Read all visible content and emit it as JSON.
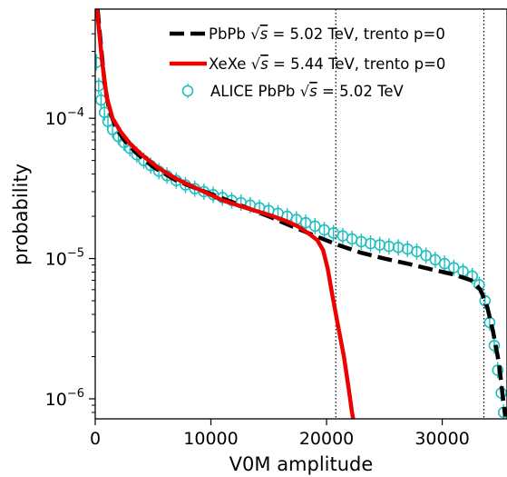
{
  "chart_data": {
    "type": "line",
    "xlabel": "V0M amplitude",
    "ylabel": "probability",
    "yscale": "log",
    "xlim": [
      0,
      35600
    ],
    "ylim": [
      7.2e-07,
      0.0006
    ],
    "x_ticks": [
      0,
      10000,
      20000,
      30000
    ],
    "x_tick_labels": [
      "0",
      "10000",
      "20000",
      "30000"
    ],
    "y_ticks": [
      1e-06,
      1e-05,
      0.0001
    ],
    "y_tick_labels": [
      {
        "base": "10",
        "exp": "−6"
      },
      {
        "base": "10",
        "exp": "−5"
      },
      {
        "base": "10",
        "exp": "−4"
      }
    ],
    "vertical_lines": [
      20800,
      33600
    ],
    "grid": false,
    "legend_position": "top-right",
    "series": [
      {
        "name": "PbPb √s = 5.02 TeV, trento p=0",
        "legend_label": {
          "prefix": "PbPb ",
          "suffix": " = 5.02 TeV, trento p=0"
        },
        "color": "#000000",
        "style": "dashed",
        "points": [
          [
            200,
            0.0006
          ],
          [
            400,
            0.0004
          ],
          [
            800,
            0.00018
          ],
          [
            1200,
            0.000115
          ],
          [
            1800,
            8.5e-05
          ],
          [
            2500,
            7e-05
          ],
          [
            3500,
            5.7e-05
          ],
          [
            5000,
            4.5e-05
          ],
          [
            7000,
            3.6e-05
          ],
          [
            9000,
            3.1e-05
          ],
          [
            12000,
            2.5e-05
          ],
          [
            15000,
            2e-05
          ],
          [
            17000,
            1.7e-05
          ],
          [
            19000,
            1.45e-05
          ],
          [
            21000,
            1.25e-05
          ],
          [
            23000,
            1.1e-05
          ],
          [
            25000,
            1e-05
          ],
          [
            27000,
            9.2e-06
          ],
          [
            29000,
            8.4e-06
          ],
          [
            31000,
            7.7e-06
          ],
          [
            32500,
            7e-06
          ],
          [
            33300,
            6e-06
          ],
          [
            33900,
            4.5e-06
          ],
          [
            34400,
            3e-06
          ],
          [
            34900,
            1.8e-06
          ],
          [
            35200,
            1.1e-06
          ],
          [
            35450,
            7.5e-07
          ]
        ]
      },
      {
        "name": "XeXe √s = 5.44 TeV, trento p=0",
        "legend_label": {
          "prefix": "XeXe ",
          "suffix": " = 5.44 TeV, trento p=0"
        },
        "color": "#ee0000",
        "style": "solid",
        "points": [
          [
            150,
            0.0006
          ],
          [
            300,
            0.00045
          ],
          [
            600,
            0.00025
          ],
          [
            1000,
            0.00014
          ],
          [
            1500,
            0.0001
          ],
          [
            2200,
            8e-05
          ],
          [
            3000,
            6.6e-05
          ],
          [
            4000,
            5.5e-05
          ],
          [
            5500,
            4.4e-05
          ],
          [
            7000,
            3.7e-05
          ],
          [
            9000,
            3.1e-05
          ],
          [
            11000,
            2.6e-05
          ],
          [
            13000,
            2.3e-05
          ],
          [
            15000,
            2.05e-05
          ],
          [
            16500,
            1.85e-05
          ],
          [
            17500,
            1.7e-05
          ],
          [
            18500,
            1.5e-05
          ],
          [
            19200,
            1.35e-05
          ],
          [
            19700,
            1.15e-05
          ],
          [
            20100,
            8.5e-06
          ],
          [
            20500,
            5.5e-06
          ],
          [
            21000,
            3.3e-06
          ],
          [
            21500,
            2e-06
          ],
          [
            21900,
            1.2e-06
          ],
          [
            22200,
            8e-07
          ],
          [
            22350,
            6.8e-07
          ]
        ]
      },
      {
        "name": "ALICE PbPb √s = 5.02 TeV",
        "legend_label": {
          "prefix": "ALICE PbPb ",
          "suffix": " = 5.02 TeV"
        },
        "color": "#1fbfbf",
        "style": "markers",
        "points": [
          [
            100,
            0.00025
          ],
          [
            300,
            0.00017
          ],
          [
            500,
            0.000135
          ],
          [
            800,
            0.00011
          ],
          [
            1100,
            9.5e-05
          ],
          [
            1500,
            8.3e-05
          ],
          [
            2000,
            7.4e-05
          ],
          [
            2500,
            6.7e-05
          ],
          [
            3000,
            6.1e-05
          ],
          [
            3600,
            5.5e-05
          ],
          [
            4200,
            5e-05
          ],
          [
            4800,
            4.6e-05
          ],
          [
            5500,
            4.2e-05
          ],
          [
            6200,
            3.9e-05
          ],
          [
            7000,
            3.6e-05
          ],
          [
            7800,
            3.35e-05
          ],
          [
            8600,
            3.15e-05
          ],
          [
            9400,
            3e-05
          ],
          [
            10200,
            2.85e-05
          ],
          [
            11000,
            2.72e-05
          ],
          [
            11800,
            2.6e-05
          ],
          [
            12600,
            2.5e-05
          ],
          [
            13400,
            2.4e-05
          ],
          [
            14200,
            2.3e-05
          ],
          [
            15000,
            2.2e-05
          ],
          [
            15800,
            2.1e-05
          ],
          [
            16600,
            2e-05
          ],
          [
            17400,
            1.9e-05
          ],
          [
            18200,
            1.8e-05
          ],
          [
            19000,
            1.7e-05
          ],
          [
            19800,
            1.6e-05
          ],
          [
            20600,
            1.52e-05
          ],
          [
            21400,
            1.45e-05
          ],
          [
            22200,
            1.38e-05
          ],
          [
            23000,
            1.32e-05
          ],
          [
            23800,
            1.28e-05
          ],
          [
            24600,
            1.25e-05
          ],
          [
            25400,
            1.22e-05
          ],
          [
            26200,
            1.2e-05
          ],
          [
            27000,
            1.17e-05
          ],
          [
            27800,
            1.12e-05
          ],
          [
            28600,
            1.05e-05
          ],
          [
            29400,
            9.8e-06
          ],
          [
            30200,
            9.2e-06
          ],
          [
            31000,
            8.6e-06
          ],
          [
            31800,
            8.1e-06
          ],
          [
            32600,
            7.5e-06
          ],
          [
            33200,
            6.5e-06
          ],
          [
            33700,
            5e-06
          ],
          [
            34100,
            3.5e-06
          ],
          [
            34500,
            2.4e-06
          ],
          [
            34800,
            1.6e-06
          ],
          [
            35100,
            1.1e-06
          ],
          [
            35300,
            8e-07
          ]
        ]
      }
    ]
  }
}
